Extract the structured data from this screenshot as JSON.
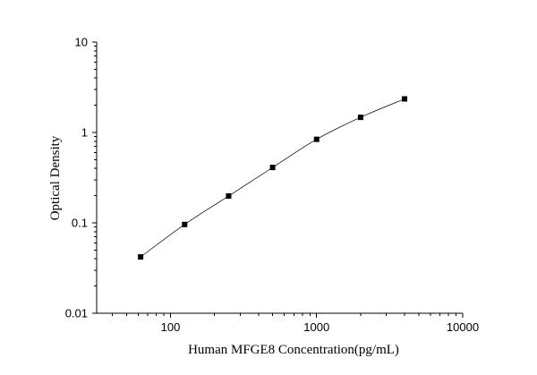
{
  "chart_data": {
    "type": "scatter",
    "title": "",
    "xlabel": "Human MFGE8 Concentration(pg/mL)",
    "ylabel": "Optical Density",
    "xscale": "log",
    "yscale": "log",
    "xlim": [
      31.25,
      10000
    ],
    "ylim": [
      0.01,
      10
    ],
    "x_ticks": [
      100,
      1000,
      10000
    ],
    "x_tick_labels": [
      "100",
      "1000",
      "10000"
    ],
    "y_ticks": [
      0.01,
      0.1,
      1,
      10
    ],
    "y_tick_labels": [
      "0.01",
      "0.1",
      "1",
      "10"
    ],
    "grid": false,
    "legend": "none",
    "series": [
      {
        "marker": "square",
        "line": "fitted curve",
        "color": "#000000",
        "x": [
          62.5,
          125,
          250,
          500,
          1000,
          2000,
          4000
        ],
        "y": [
          0.042,
          0.096,
          0.198,
          0.41,
          0.84,
          1.47,
          2.35
        ]
      }
    ]
  }
}
